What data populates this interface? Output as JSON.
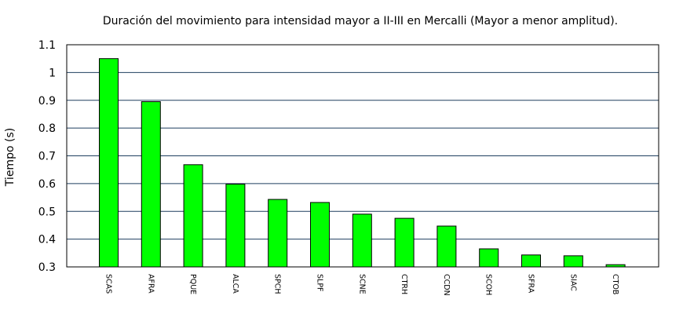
{
  "chart_data": {
    "type": "bar",
    "title": "Duración del movimiento para intensidad mayor a II-III en Mercalli (Mayor a menor amplitud).",
    "xlabel": "",
    "ylabel": "Tiempo (s)",
    "ylim": [
      0.3,
      1.1
    ],
    "yticks": [
      "0.3",
      "0.4",
      "0.5",
      "0.6",
      "0.7",
      "0.8",
      "0.9",
      "1",
      "1.1"
    ],
    "categories": [
      "SCAS",
      "AFRA",
      "PQUE",
      "ALCA",
      "SPCH",
      "SLPF",
      "SCNE",
      "CTRH",
      "CCDN",
      "SCOH",
      "SFRA",
      "SIAC",
      "CTOB"
    ],
    "values": [
      1.05,
      0.895,
      0.668,
      0.598,
      0.543,
      0.532,
      0.49,
      0.475,
      0.447,
      0.365,
      0.343,
      0.34,
      0.308
    ],
    "bar_color": "#00ff00",
    "grid_color": "#1f3f5f",
    "grid": true,
    "legend": false
  }
}
